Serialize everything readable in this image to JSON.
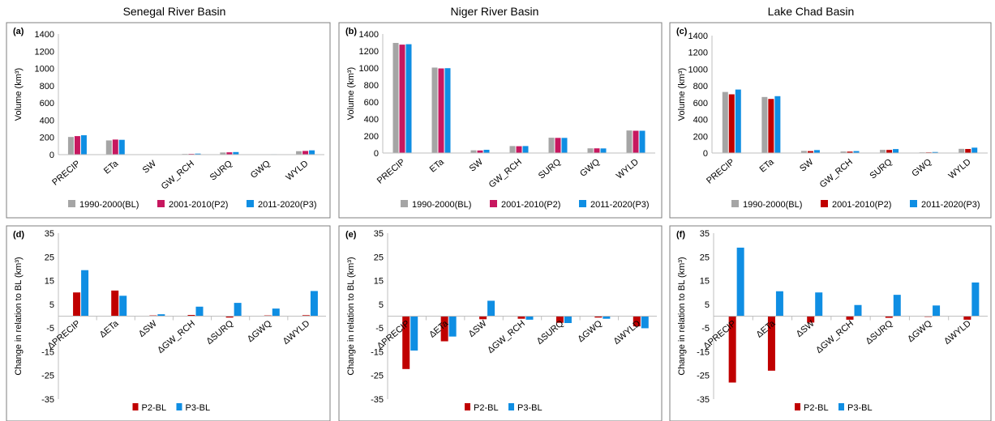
{
  "basins": [
    "Senegal River Basin",
    "Niger River Basin",
    "Lake Chad Basin"
  ],
  "chart_data": [
    {
      "panel": "(a)",
      "type": "bar",
      "ylabel": "Volume (km³)",
      "ylim": [
        0,
        1400
      ],
      "yticks": [
        "0",
        "200",
        "400",
        "600",
        "800",
        "1000",
        "1200",
        "1400"
      ],
      "categories": [
        "PRECIP",
        "ETa",
        "SW",
        "GW_RCH",
        "SURQ",
        "GWQ",
        "WYLD"
      ],
      "series": [
        {
          "name": "1990-2000(BL)",
          "color": "#a5a5a5",
          "values": [
            205,
            165,
            2,
            8,
            25,
            3,
            40
          ]
        },
        {
          "name": "2001-2010(P2)",
          "color": "#c7175f",
          "values": [
            215,
            175,
            3,
            9,
            27,
            4,
            43
          ]
        },
        {
          "name": "2011-2020(P3)",
          "color": "#0f8ee3",
          "values": [
            225,
            172,
            4,
            12,
            30,
            5,
            50
          ]
        }
      ],
      "legend_position": "bottom"
    },
    {
      "panel": "(b)",
      "type": "bar",
      "ylabel": "Volume (km³)",
      "ylim": [
        0,
        1400
      ],
      "yticks": [
        "0",
        "200",
        "400",
        "600",
        "800",
        "1000",
        "1200",
        "1400"
      ],
      "categories": [
        "PRECIP",
        "ETa",
        "SW",
        "GW_RCH",
        "SURQ",
        "GWQ",
        "WYLD"
      ],
      "series": [
        {
          "name": "1990-2000(BL)",
          "color": "#a5a5a5",
          "values": [
            1295,
            1005,
            32,
            82,
            180,
            55,
            265
          ]
        },
        {
          "name": "2001-2010(P2)",
          "color": "#c7175f",
          "values": [
            1275,
            995,
            30,
            80,
            178,
            55,
            262
          ]
        },
        {
          "name": "2011-2020(P3)",
          "color": "#0f8ee3",
          "values": [
            1280,
            998,
            38,
            82,
            178,
            54,
            262
          ]
        }
      ],
      "legend_position": "bottom"
    },
    {
      "panel": "(c)",
      "type": "bar",
      "ylabel": "Volume (km³)",
      "ylim": [
        0,
        1400
      ],
      "yticks": [
        "0",
        "200",
        "400",
        "600",
        "800",
        "1000",
        "1200",
        "1400"
      ],
      "categories": [
        "PRECIP",
        "ETa",
        "SW",
        "GW_RCH",
        "SURQ",
        "GWQ",
        "WYLD"
      ],
      "series": [
        {
          "name": "1990-2000(BL)",
          "color": "#a5a5a5",
          "values": [
            728,
            668,
            25,
            18,
            38,
            8,
            50
          ]
        },
        {
          "name": "2001-2010(P2)",
          "color": "#c00000",
          "values": [
            700,
            645,
            23,
            17,
            37,
            8,
            48
          ]
        },
        {
          "name": "2011-2020(P3)",
          "color": "#0f8ee3",
          "values": [
            757,
            678,
            35,
            23,
            47,
            12,
            64
          ]
        }
      ],
      "legend_position": "bottom"
    },
    {
      "panel": "(d)",
      "type": "bar",
      "ylabel": "Change in relation to BL (km³)",
      "ylim": [
        -35,
        35
      ],
      "yticks": [
        "-35",
        "-25",
        "-15",
        "-5",
        "5",
        "15",
        "25",
        "35"
      ],
      "categories": [
        "ΔPRECIP",
        "ΔETa",
        "ΔSW",
        "ΔGW_RCH",
        "ΔSURQ",
        "ΔGWQ",
        "ΔWYLD"
      ],
      "series": [
        {
          "name": "P2-BL",
          "color": "#c00000",
          "values": [
            10,
            10.8,
            0.3,
            0.5,
            -0.6,
            0.3,
            0.4
          ]
        },
        {
          "name": "P3-BL",
          "color": "#0f8ee3",
          "values": [
            19.4,
            8.6,
            0.8,
            4,
            5.6,
            3.2,
            10.6
          ]
        }
      ],
      "legend_position": "bottom"
    },
    {
      "panel": "(e)",
      "type": "bar",
      "ylabel": "Change in relation to BL (km³)",
      "ylim": [
        -35,
        35
      ],
      "yticks": [
        "-35",
        "-25",
        "-15",
        "-5",
        "5",
        "15",
        "25",
        "35"
      ],
      "categories": [
        "ΔPRECIP",
        "ΔETa",
        "ΔSW",
        "ΔGW_RCH",
        "ΔSURQ",
        "ΔGWQ",
        "ΔWYLD"
      ],
      "series": [
        {
          "name": "P2-BL",
          "color": "#c00000",
          "values": [
            -22.3,
            -10.6,
            -1.3,
            -1.1,
            -2.8,
            -0.6,
            -4.3
          ]
        },
        {
          "name": "P3-BL",
          "color": "#0f8ee3",
          "values": [
            -14.5,
            -8.6,
            6.5,
            -1.5,
            -2.9,
            -1.1,
            -5.1
          ]
        }
      ],
      "legend_position": "bottom"
    },
    {
      "panel": "(f)",
      "type": "bar",
      "ylabel": "Change in relation to BL (km³)",
      "ylim": [
        -35,
        35
      ],
      "yticks": [
        "-35",
        "-25",
        "-15",
        "-5",
        "5",
        "15",
        "25",
        "35"
      ],
      "categories": [
        "ΔPRECIP",
        "ΔETa",
        "ΔSW",
        "ΔGW_RCH",
        "ΔSURQ",
        "ΔGWQ",
        "ΔWYLD"
      ],
      "series": [
        {
          "name": "P2-BL",
          "color": "#c00000",
          "values": [
            -28,
            -23,
            -2.7,
            -1.5,
            -0.7,
            -0.3,
            -1.5
          ]
        },
        {
          "name": "P3-BL",
          "color": "#0f8ee3",
          "values": [
            28.9,
            10.5,
            10,
            4.7,
            9,
            4.5,
            14.2
          ]
        }
      ],
      "legend_position": "bottom"
    }
  ]
}
